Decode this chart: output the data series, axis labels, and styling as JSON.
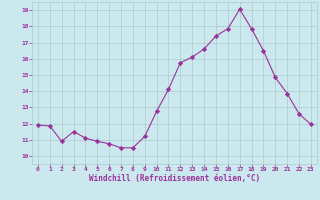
{
  "x": [
    0,
    1,
    2,
    3,
    4,
    5,
    6,
    7,
    8,
    9,
    10,
    11,
    12,
    13,
    14,
    15,
    16,
    17,
    18,
    19,
    20,
    21,
    22,
    23
  ],
  "y": [
    11.9,
    11.85,
    10.9,
    11.5,
    11.1,
    10.9,
    10.75,
    10.5,
    10.5,
    11.2,
    12.75,
    14.1,
    15.75,
    16.1,
    16.6,
    17.4,
    17.85,
    19.05,
    17.85,
    16.5,
    14.85,
    13.85,
    12.6,
    11.95
  ],
  "line_color": "#993399",
  "marker": "D",
  "marker_size": 2.2,
  "bg_color": "#cce8ef",
  "grid_color": "#aacccc",
  "xlabel": "Windchill (Refroidissement éolien,°C)",
  "xlabel_color": "#993399",
  "tick_color": "#993399",
  "ylim": [
    9.5,
    19.5
  ],
  "xlim": [
    -0.5,
    23.5
  ],
  "yticks": [
    10,
    11,
    12,
    13,
    14,
    15,
    16,
    17,
    18,
    19
  ],
  "xticks": [
    0,
    1,
    2,
    3,
    4,
    5,
    6,
    7,
    8,
    9,
    10,
    11,
    12,
    13,
    14,
    15,
    16,
    17,
    18,
    19,
    20,
    21,
    22,
    23
  ]
}
